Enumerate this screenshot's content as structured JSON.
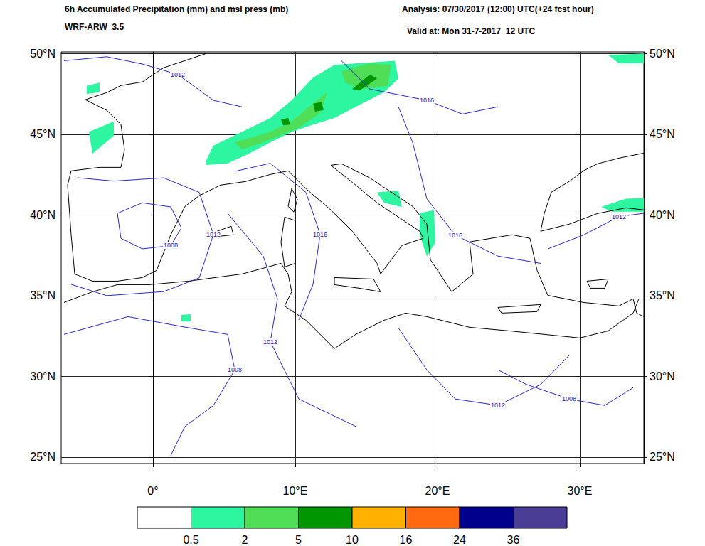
{
  "chart_data": {
    "type": "map",
    "title": "6h Accumulated Precipitation (mm) and msl press (mb)",
    "subtitle": "WRF-ARW_3.5",
    "annotations": [
      "Analysis: 07/30/2017 (12:00) UTC(+24 fcst hour)",
      "Valid at: Mon 31-7-2017  12 UTC"
    ],
    "xlim": [
      -6.45,
      34.5
    ],
    "xticks": [
      {
        "value": 0,
        "label": "0°"
      },
      {
        "value": 10,
        "label": "10°E"
      },
      {
        "value": 20,
        "label": "20°E"
      },
      {
        "value": 30,
        "label": "30°E"
      }
    ],
    "ylim": [
      24.6,
      50.1
    ],
    "yticks": [
      {
        "value": 25,
        "label": "25°N"
      },
      {
        "value": 30,
        "label": "30°N"
      },
      {
        "value": 35,
        "label": "35°N"
      },
      {
        "value": 40,
        "label": "40°N"
      },
      {
        "value": 45,
        "label": "45°N"
      },
      {
        "value": 50,
        "label": "50°N"
      }
    ],
    "y2lim": [
      24.6,
      50.1
    ],
    "y2ticks": [
      {
        "value": 25,
        "label": "25°N"
      },
      {
        "value": 30,
        "label": "30°N"
      },
      {
        "value": 35,
        "label": "35°N"
      },
      {
        "value": 40,
        "label": "40°N"
      },
      {
        "value": 45,
        "label": "45°N"
      },
      {
        "value": 50,
        "label": "50°N"
      }
    ],
    "grid": true,
    "colorbar": {
      "levels": [
        0.5,
        2,
        5,
        10,
        16,
        24,
        36
      ],
      "colors": [
        "#ffffff",
        "#2ef5a0",
        "#4fde55",
        "#009600",
        "#ffb000",
        "#ff6a10",
        "#00008c",
        "#4a3d96"
      ]
    },
    "precipitation": [
      {
        "value": 0.5,
        "points": [
          [
            3.75,
            43.4
          ],
          [
            4.25,
            44.3
          ],
          [
            6.25,
            45.15
          ],
          [
            8.25,
            46.0
          ],
          [
            9.75,
            47.1
          ],
          [
            11.25,
            48.5
          ],
          [
            12.75,
            49.3
          ],
          [
            17.0,
            49.55
          ],
          [
            17.25,
            48.45
          ],
          [
            16.25,
            47.6
          ],
          [
            14.25,
            46.7
          ],
          [
            12.75,
            46.0
          ],
          [
            11.25,
            45.6
          ],
          [
            9.75,
            45.15
          ],
          [
            8.25,
            44.5
          ],
          [
            6.75,
            43.8
          ],
          [
            5.25,
            43.2
          ],
          [
            3.75,
            43.1
          ]
        ]
      },
      {
        "value": 2,
        "points": [
          [
            5.75,
            44.5
          ],
          [
            8.25,
            45.15
          ],
          [
            9.75,
            45.8
          ],
          [
            11.25,
            46.9
          ],
          [
            12.25,
            47.6
          ],
          [
            11.75,
            46.3
          ],
          [
            10.25,
            45.4
          ],
          [
            7.75,
            44.5
          ],
          [
            6.25,
            44.05
          ]
        ]
      },
      {
        "value": 2,
        "points": [
          [
            13.25,
            48.9
          ],
          [
            15.25,
            49.4
          ],
          [
            16.75,
            49.3
          ],
          [
            16.5,
            48.0
          ],
          [
            14.75,
            47.8
          ],
          [
            13.5,
            48.2
          ]
        ]
      },
      {
        "value": 5,
        "points": [
          [
            11.25,
            46.9
          ],
          [
            11.85,
            47.0
          ],
          [
            12.0,
            46.5
          ],
          [
            11.4,
            46.4
          ]
        ]
      },
      {
        "value": 5,
        "points": [
          [
            14.0,
            47.8
          ],
          [
            15.25,
            48.7
          ],
          [
            15.75,
            48.45
          ],
          [
            14.5,
            47.7
          ]
        ]
      },
      {
        "value": 5,
        "points": [
          [
            9.0,
            45.9
          ],
          [
            9.5,
            46.0
          ],
          [
            9.65,
            45.6
          ],
          [
            9.15,
            45.55
          ]
        ]
      },
      {
        "value": 0.5,
        "points": [
          [
            -4.65,
            48.0
          ],
          [
            -3.75,
            48.2
          ],
          [
            -3.75,
            47.6
          ],
          [
            -4.65,
            47.5
          ]
        ]
      },
      {
        "value": 0.5,
        "points": [
          [
            -4.5,
            45.15
          ],
          [
            -2.75,
            45.8
          ],
          [
            -2.75,
            44.9
          ],
          [
            -4.25,
            43.8
          ]
        ]
      },
      {
        "value": 0.5,
        "points": [
          [
            32.0,
            49.9
          ],
          [
            34.5,
            50.0
          ],
          [
            34.5,
            49.4
          ],
          [
            32.75,
            49.4
          ]
        ]
      },
      {
        "value": 0.5,
        "points": [
          [
            15.75,
            41.4
          ],
          [
            17.25,
            41.5
          ],
          [
            17.5,
            40.5
          ],
          [
            16.25,
            40.75
          ]
        ]
      },
      {
        "value": 0.5,
        "points": [
          [
            18.75,
            40.1
          ],
          [
            19.75,
            40.3
          ],
          [
            19.85,
            38.3
          ],
          [
            19.25,
            37.45
          ],
          [
            18.75,
            38.75
          ]
        ]
      },
      {
        "value": 0.5,
        "points": [
          [
            31.5,
            40.5
          ],
          [
            33.25,
            41.0
          ],
          [
            34.5,
            41.05
          ],
          [
            34.5,
            40.2
          ],
          [
            32.25,
            40.2
          ]
        ]
      },
      {
        "value": 0.5,
        "points": [
          [
            2.0,
            33.8
          ],
          [
            2.65,
            33.85
          ],
          [
            2.65,
            33.4
          ],
          [
            2.0,
            33.4
          ]
        ]
      }
    ],
    "coastlines": [
      [
        [
          3.75,
          50.0
        ],
        [
          2.25,
          49.56
        ],
        [
          0.75,
          49.12
        ],
        [
          -0.75,
          48.24
        ],
        [
          -2.25,
          48.02
        ],
        [
          -3.25,
          47.58
        ],
        [
          -4.75,
          47.14
        ],
        [
          -3.25,
          46.48
        ],
        [
          -2.25,
          45.6
        ],
        [
          -2.0,
          44.05
        ],
        [
          -2.25,
          42.95
        ],
        [
          -3.75,
          42.95
        ],
        [
          -5.75,
          42.73
        ],
        [
          -6.0,
          41.85
        ],
        [
          -5.75,
          38.77
        ],
        [
          -5.5,
          36.34
        ],
        [
          -4.25,
          35.9
        ],
        [
          -2.5,
          35.9
        ],
        [
          -0.75,
          36.12
        ],
        [
          0.25,
          36.56
        ],
        [
          1.25,
          38.77
        ],
        [
          2.25,
          40.53
        ],
        [
          3.25,
          41.19
        ],
        [
          4.75,
          41.85
        ],
        [
          6.5,
          42.07
        ],
        [
          8.25,
          42.51
        ],
        [
          9.5,
          42.73
        ],
        [
          10.75,
          41.63
        ],
        [
          12.5,
          40.31
        ],
        [
          14.0,
          39.0
        ],
        [
          15.75,
          37.0
        ],
        [
          16.0,
          36.34
        ],
        [
          16.75,
          37.23
        ],
        [
          17.5,
          38.11
        ],
        [
          19.0,
          38.55
        ],
        [
          18.75,
          38.99
        ],
        [
          17.25,
          39.87
        ],
        [
          15.75,
          40.75
        ],
        [
          14.25,
          41.85
        ],
        [
          12.5,
          43.08
        ],
        [
          13.25,
          43.17
        ],
        [
          15.25,
          42.29
        ],
        [
          16.75,
          41.41
        ],
        [
          18.25,
          40.53
        ],
        [
          19.25,
          39.43
        ],
        [
          19.5,
          37.23
        ],
        [
          21.0,
          35.24
        ],
        [
          22.5,
          36.34
        ],
        [
          22.25,
          38.33
        ],
        [
          25.25,
          38.77
        ],
        [
          26.5,
          38.55
        ],
        [
          27.0,
          36.56
        ],
        [
          27.75,
          35.02
        ],
        [
          30.25,
          34.58
        ],
        [
          32.75,
          34.36
        ],
        [
          33.75,
          34.8
        ],
        [
          34.0,
          33.92
        ],
        [
          34.5,
          33.7
        ]
      ],
      [
        [
          -6.25,
          34.58
        ],
        [
          -4.25,
          35.24
        ],
        [
          -2.5,
          35.68
        ],
        [
          -0.25,
          35.68
        ],
        [
          2.5,
          35.9
        ],
        [
          6.25,
          36.34
        ],
        [
          9.0,
          37.0
        ],
        [
          9.5,
          36.34
        ],
        [
          9.75,
          35.24
        ],
        [
          9.25,
          34.36
        ],
        [
          10.75,
          33.48
        ],
        [
          12.75,
          31.72
        ],
        [
          14.25,
          32.6
        ],
        [
          16.25,
          33.48
        ],
        [
          17.75,
          33.92
        ],
        [
          19.25,
          33.7
        ],
        [
          22.25,
          33.04
        ],
        [
          25.0,
          32.82
        ],
        [
          27.5,
          32.6
        ],
        [
          30.0,
          32.38
        ],
        [
          32.0,
          32.82
        ],
        [
          33.75,
          33.92
        ],
        [
          34.15,
          34.8
        ]
      ],
      [
        [
          34.5,
          43.83
        ],
        [
          32.75,
          43.52
        ],
        [
          31.25,
          43.17
        ],
        [
          30.25,
          42.73
        ],
        [
          29.25,
          42.07
        ],
        [
          28.0,
          41.41
        ],
        [
          27.5,
          40.09
        ],
        [
          27.25,
          38.99
        ],
        [
          29.25,
          39.43
        ],
        [
          31.25,
          40.09
        ],
        [
          33.25,
          40.44
        ],
        [
          34.5,
          40.31
        ]
      ],
      [
        [
          9.25,
          39.87
        ],
        [
          10.0,
          39.65
        ],
        [
          10.0,
          37.0
        ],
        [
          9.25,
          36.78
        ],
        [
          9.0,
          38.33
        ],
        [
          9.25,
          39.87
        ]
      ],
      [
        [
          9.75,
          41.63
        ],
        [
          10.15,
          40.97
        ],
        [
          9.9,
          40.18
        ],
        [
          9.5,
          40.53
        ],
        [
          9.75,
          41.63
        ]
      ],
      [
        [
          12.75,
          36.12
        ],
        [
          15.5,
          36.03
        ],
        [
          16.0,
          35.24
        ],
        [
          14.5,
          35.46
        ],
        [
          12.75,
          35.68
        ],
        [
          12.75,
          36.12
        ]
      ],
      [
        [
          24.25,
          34.27
        ],
        [
          27.25,
          34.45
        ],
        [
          27.0,
          34.01
        ],
        [
          24.5,
          33.92
        ],
        [
          24.25,
          34.27
        ]
      ],
      [
        [
          30.5,
          35.9
        ],
        [
          32.0,
          36.03
        ],
        [
          31.75,
          35.46
        ],
        [
          30.75,
          35.46
        ],
        [
          30.5,
          35.9
        ]
      ],
      [
        [
          4.5,
          38.99
        ],
        [
          5.5,
          39.3
        ],
        [
          5.65,
          38.77
        ],
        [
          4.65,
          38.68
        ],
        [
          4.5,
          38.99
        ]
      ]
    ],
    "isobars": [
      {
        "value": 1008,
        "points": [
          [
            -2.5,
            40.1
          ],
          [
            -0.75,
            40.75
          ],
          [
            1.25,
            40.5
          ],
          [
            2.0,
            39.2
          ],
          [
            1.25,
            38.1
          ],
          [
            -0.75,
            37.9
          ],
          [
            -2.25,
            38.55
          ],
          [
            -2.5,
            40.1
          ]
        ]
      },
      {
        "value": 1012,
        "points": [
          [
            -5.25,
            42.3
          ],
          [
            -2.75,
            42.1
          ],
          [
            0.75,
            42.3
          ],
          [
            3.25,
            41.4
          ],
          [
            4.25,
            38.8
          ],
          [
            3.25,
            36.1
          ],
          [
            0.75,
            35.25
          ],
          [
            -3.25,
            35.0
          ],
          [
            -5.75,
            35.7
          ]
        ]
      },
      {
        "value": 1016,
        "points": [
          [
            5.75,
            42.7
          ],
          [
            8.25,
            43.2
          ],
          [
            10.75,
            41.4
          ],
          [
            11.75,
            38.8
          ],
          [
            11.25,
            35.7
          ],
          [
            10.25,
            33.5
          ]
        ]
      },
      {
        "value": 1012,
        "points": [
          [
            5.25,
            40.1
          ],
          [
            7.75,
            37.45
          ],
          [
            8.75,
            34.8
          ],
          [
            8.25,
            32.15
          ],
          [
            10.25,
            28.6
          ],
          [
            14.25,
            26.9
          ]
        ]
      },
      {
        "value": 1008,
        "points": [
          [
            -6.25,
            32.6
          ],
          [
            -1.75,
            33.7
          ],
          [
            2.25,
            33.05
          ],
          [
            5.25,
            32.6
          ],
          [
            5.75,
            30.4
          ],
          [
            4.25,
            28.2
          ],
          [
            2.25,
            26.9
          ],
          [
            1.25,
            25.1
          ]
        ]
      },
      {
        "value": 1012,
        "points": [
          [
            17.25,
            33.0
          ],
          [
            19.25,
            30.4
          ],
          [
            21.25,
            28.6
          ],
          [
            24.25,
            28.2
          ],
          [
            27.25,
            29.5
          ],
          [
            29.25,
            31.3
          ]
        ]
      },
      {
        "value": 1008,
        "points": [
          [
            24.25,
            30.4
          ],
          [
            26.25,
            29.5
          ],
          [
            29.25,
            28.6
          ],
          [
            31.75,
            28.2
          ],
          [
            33.75,
            29.3
          ]
        ]
      },
      {
        "value": 1016,
        "points": [
          [
            17.25,
            46.7
          ],
          [
            18.25,
            44.5
          ],
          [
            19.25,
            41.0
          ],
          [
            21.25,
            38.75
          ],
          [
            24.25,
            37.45
          ],
          [
            27.25,
            37.0
          ]
        ]
      },
      {
        "value": 1012,
        "points": [
          [
            27.75,
            37.9
          ],
          [
            30.25,
            38.75
          ],
          [
            32.75,
            39.9
          ],
          [
            34.5,
            40.1
          ]
        ]
      },
      {
        "value": 1012,
        "points": [
          [
            -6.25,
            49.55
          ],
          [
            -3.25,
            49.8
          ],
          [
            -0.75,
            49.35
          ],
          [
            1.75,
            48.7
          ],
          [
            4.25,
            47.1
          ],
          [
            6.25,
            46.7
          ]
        ]
      },
      {
        "value": 1016,
        "points": [
          [
            13.25,
            49.55
          ],
          [
            15.25,
            47.8
          ],
          [
            19.25,
            47.1
          ],
          [
            21.75,
            46.25
          ],
          [
            24.25,
            46.7
          ]
        ]
      }
    ]
  }
}
